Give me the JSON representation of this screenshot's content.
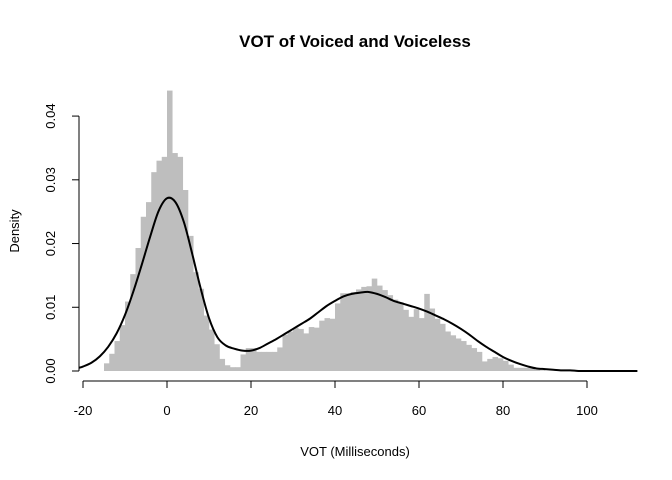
{
  "chart_data": {
    "type": "histogram",
    "title": "VOT of Voiced and Voiceless",
    "xlabel": "VOT (Milliseconds)",
    "ylabel": "Density",
    "xlim": [
      -20,
      110
    ],
    "ylim": [
      0,
      0.044
    ],
    "x_ticks": [
      -20,
      0,
      20,
      40,
      60,
      80,
      100
    ],
    "y_ticks": [
      0.0,
      0.01,
      0.02,
      0.03,
      0.04
    ],
    "x_tick_labels": [
      "-20",
      "0",
      "20",
      "40",
      "60",
      "80",
      "100"
    ],
    "y_tick_labels": [
      "0.00",
      "0.01",
      "0.02",
      "0.03",
      "0.04"
    ],
    "bar_color": "#bebebe",
    "line_color": "#000000",
    "grid": false,
    "histogram": {
      "bin_width": 1.25,
      "bins_start": [
        -15,
        -13.75,
        -12.5,
        -11.25,
        -10,
        -8.75,
        -7.5,
        -6.25,
        -5,
        -3.75,
        -2.5,
        -1.25,
        0,
        1.25,
        2.5,
        3.75,
        5,
        6.25,
        7.5,
        8.75,
        10,
        11.25,
        12.5,
        13.75,
        15,
        16.25,
        17.5,
        18.75,
        20,
        21.25,
        22.5,
        23.75,
        25,
        26.25,
        27.5,
        28.75,
        30,
        31.25,
        32.5,
        33.75,
        35,
        36.25,
        37.5,
        38.75,
        40,
        41.25,
        42.5,
        43.75,
        45,
        46.25,
        47.5,
        48.75,
        50,
        51.25,
        52.5,
        53.75,
        55,
        56.25,
        57.5,
        58.75,
        60,
        61.25,
        62.5,
        63.75,
        65,
        66.25,
        67.5,
        68.75,
        70,
        71.25,
        72.5,
        73.75,
        75,
        76.25,
        77.5,
        78.75,
        80,
        81.25,
        82.5,
        83.75,
        85,
        86.25,
        87.5,
        88.75
      ],
      "density": [
        0.0012,
        0.0027,
        0.0047,
        0.0072,
        0.0109,
        0.0152,
        0.0193,
        0.0242,
        0.0265,
        0.0312,
        0.033,
        0.0336,
        0.044,
        0.0342,
        0.0336,
        0.0284,
        0.0212,
        0.0155,
        0.0129,
        0.0087,
        0.0065,
        0.0042,
        0.0019,
        0.0009,
        0.0006,
        0.0006,
        0.0026,
        0.0036,
        0.0036,
        0.003,
        0.003,
        0.003,
        0.003,
        0.0037,
        0.0057,
        0.0062,
        0.0068,
        0.0066,
        0.0059,
        0.0069,
        0.0068,
        0.0079,
        0.0083,
        0.0082,
        0.0106,
        0.0122,
        0.0122,
        0.0124,
        0.0128,
        0.0132,
        0.0133,
        0.0145,
        0.0134,
        0.0127,
        0.0119,
        0.0112,
        0.0108,
        0.0096,
        0.0085,
        0.0097,
        0.0083,
        0.0121,
        0.0098,
        0.0082,
        0.0074,
        0.0062,
        0.0056,
        0.0051,
        0.0047,
        0.0041,
        0.0036,
        0.003,
        0.0015,
        0.0019,
        0.0022,
        0.002,
        0.0016,
        0.001,
        0.0005,
        0.0005,
        0.0005,
        0.0005,
        0.0002,
        0.0001
      ]
    },
    "density_curve": {
      "x": [
        -21,
        -20,
        -18,
        -16,
        -14,
        -12,
        -10,
        -8,
        -6,
        -4,
        -2,
        0,
        2,
        4,
        6,
        8,
        10,
        12,
        14,
        16,
        18,
        20,
        22,
        24,
        26,
        28,
        30,
        32,
        34,
        36,
        38,
        40,
        42,
        44,
        46,
        48,
        50,
        52,
        54,
        56,
        58,
        60,
        62,
        64,
        66,
        68,
        70,
        72,
        74,
        76,
        78,
        80,
        82,
        84,
        86,
        88,
        90,
        92,
        94,
        96,
        98,
        100,
        102,
        104,
        106,
        108,
        110,
        112
      ],
      "y": [
        0.0005,
        0.0007,
        0.0013,
        0.0023,
        0.0038,
        0.0059,
        0.0088,
        0.0125,
        0.0167,
        0.0211,
        0.0251,
        0.0271,
        0.0265,
        0.0234,
        0.0184,
        0.013,
        0.0083,
        0.0053,
        0.004,
        0.0035,
        0.0032,
        0.0032,
        0.0036,
        0.0043,
        0.005,
        0.0058,
        0.0066,
        0.0074,
        0.0082,
        0.0092,
        0.0102,
        0.011,
        0.0117,
        0.0121,
        0.0123,
        0.0124,
        0.0121,
        0.0116,
        0.011,
        0.0106,
        0.0102,
        0.0098,
        0.0093,
        0.0087,
        0.0081,
        0.0074,
        0.0066,
        0.0057,
        0.0047,
        0.0038,
        0.003,
        0.0022,
        0.0016,
        0.0011,
        0.0007,
        0.0004,
        0.0003,
        0.0002,
        0.0001,
        0.0001,
        0.0,
        0.0,
        0.0,
        0.0,
        0.0,
        0.0,
        0.0,
        0.0
      ]
    }
  }
}
